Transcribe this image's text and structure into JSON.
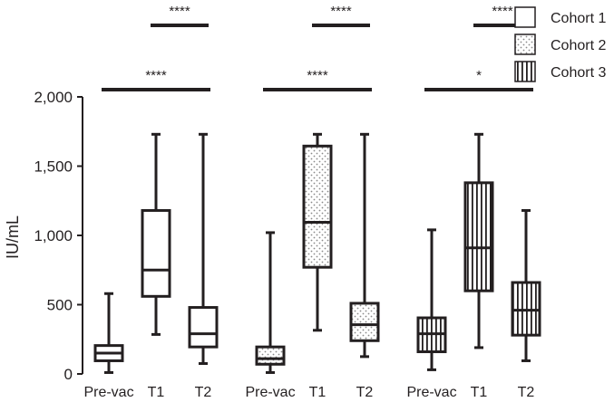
{
  "chart_data": {
    "type": "box",
    "ylabel": "IU/mL",
    "ylim": [
      0,
      2000
    ],
    "yticks": [
      0,
      500,
      1000,
      1500,
      2000
    ],
    "ytick_labels": [
      "0",
      "500",
      "1,000",
      "1,500",
      "2,000"
    ],
    "categories": [
      "Pre-vac",
      "T1",
      "T2",
      "Pre-vac",
      "T1",
      "T2",
      "Pre-vac",
      "T1",
      "T2"
    ],
    "series": [
      {
        "name": "Cohort 1",
        "pattern": "plain",
        "boxes": [
          {
            "category": "Pre-vac",
            "min": 10,
            "q1": 95,
            "median": 150,
            "q3": 205,
            "max": 580
          },
          {
            "category": "T1",
            "min": 285,
            "q1": 560,
            "median": 750,
            "q3": 1180,
            "max": 1730
          },
          {
            "category": "T2",
            "min": 75,
            "q1": 195,
            "median": 290,
            "q3": 480,
            "max": 1730
          }
        ]
      },
      {
        "name": "Cohort 2",
        "pattern": "dotted",
        "boxes": [
          {
            "category": "Pre-vac",
            "min": 10,
            "q1": 70,
            "median": 110,
            "q3": 195,
            "max": 1020
          },
          {
            "category": "T1",
            "min": 315,
            "q1": 770,
            "median": 1095,
            "q3": 1645,
            "max": 1730
          },
          {
            "category": "T2",
            "min": 125,
            "q1": 240,
            "median": 355,
            "q3": 510,
            "max": 1730
          }
        ]
      },
      {
        "name": "Cohort 3",
        "pattern": "vertical-stripes",
        "boxes": [
          {
            "category": "Pre-vac",
            "min": 30,
            "q1": 160,
            "median": 290,
            "q3": 405,
            "max": 1040
          },
          {
            "category": "T1",
            "min": 190,
            "q1": 600,
            "median": 910,
            "q3": 1380,
            "max": 1730
          },
          {
            "category": "T2",
            "min": 95,
            "q1": 280,
            "median": 460,
            "q3": 660,
            "max": 1180
          }
        ]
      }
    ],
    "comparisons": [
      {
        "cohort": "Cohort 1",
        "from": "T1",
        "to": "T2",
        "label": "****"
      },
      {
        "cohort": "Cohort 2",
        "from": "T1",
        "to": "T2",
        "label": "****"
      },
      {
        "cohort": "Cohort 3",
        "from": "T1",
        "to": "T2",
        "label": "****"
      },
      {
        "cohort": "Cohort 1",
        "from": "Pre-vac",
        "to": "T2",
        "label": "****"
      },
      {
        "cohort": "Cohort 2",
        "from": "Pre-vac",
        "to": "T2",
        "label": "****"
      },
      {
        "cohort": "Cohort 3",
        "from": "Pre-vac",
        "to": "T2",
        "label": "*"
      }
    ],
    "legend": {
      "placement": "top-right",
      "entries": [
        "Cohort 1",
        "Cohort 2",
        "Cohort 3"
      ]
    },
    "grid": false,
    "colors": {
      "ink": "#231f20",
      "fill": "#ffffff",
      "dot": "#8a8a8a"
    }
  }
}
